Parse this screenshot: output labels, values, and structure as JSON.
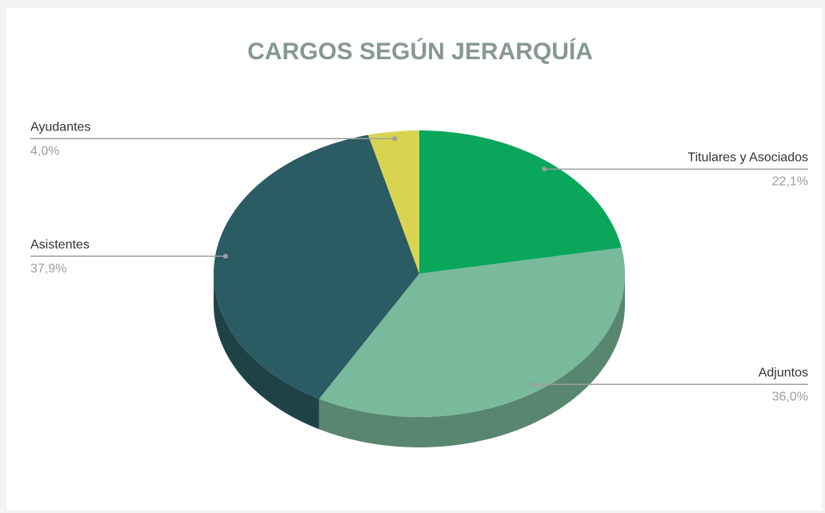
{
  "chart_data": {
    "type": "pie",
    "title": "CARGOS SEGÚN JERARQUÍA",
    "categories": [
      "Titulares y Asociados",
      "Adjuntos",
      "Asistentes",
      "Ayudantes"
    ],
    "values": [
      22.1,
      36.0,
      37.9,
      4.0
    ],
    "value_labels": [
      "22,1%",
      "36,0%",
      "37,9%",
      "4,0%"
    ],
    "colors": [
      "#0aa65c",
      "#7aba9c",
      "#2b5b63",
      "#d8d452"
    ],
    "three_d": true
  }
}
